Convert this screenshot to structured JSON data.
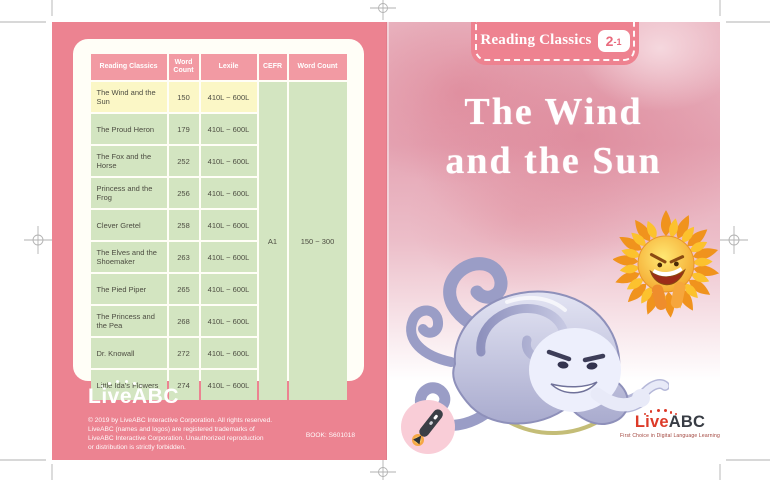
{
  "back_cover": {
    "table": {
      "headers": [
        "Reading Classics",
        "Word Count",
        "Lexile",
        "CEFR",
        "Word Count"
      ],
      "rows": [
        {
          "title": "The Wind and the Sun",
          "word_count": "150",
          "lexile": "410L ~ 600L",
          "highlight": true
        },
        {
          "title": "The Proud Heron",
          "word_count": "179",
          "lexile": "410L ~ 600L",
          "highlight": false
        },
        {
          "title": "The Fox and the Horse",
          "word_count": "252",
          "lexile": "410L ~ 600L",
          "highlight": false
        },
        {
          "title": "Princess and the Frog",
          "word_count": "256",
          "lexile": "410L ~ 600L",
          "highlight": false
        },
        {
          "title": "Clever Gretel",
          "word_count": "258",
          "lexile": "410L ~ 600L",
          "highlight": false
        },
        {
          "title": "The Elves and the Shoemaker",
          "word_count": "263",
          "lexile": "410L ~ 600L",
          "highlight": false
        },
        {
          "title": "The Pied Piper",
          "word_count": "265",
          "lexile": "410L ~ 600L",
          "highlight": false
        },
        {
          "title": "The Princess and the Pea",
          "word_count": "268",
          "lexile": "410L ~ 600L",
          "highlight": false
        },
        {
          "title": "Dr. Knowall",
          "word_count": "272",
          "lexile": "410L ~ 600L",
          "highlight": false
        },
        {
          "title": "Little Ida's Flowers",
          "word_count": "274",
          "lexile": "410L ~ 600L",
          "highlight": false
        }
      ],
      "cefr_merged": "A1",
      "word_count_range_merged": "150 ~ 300"
    },
    "logo_text": "LiveABC",
    "copyright_lines": [
      "© 2019 by LiveABC Interactive Corporation. All rights reserved.",
      "LiveABC (names and logos) are registered trademarks of",
      "LiveABC Interactive Corporation. Unauthorized reproduction",
      "or distribution is strictly forbidden."
    ],
    "book_code": "BOOK: S601018"
  },
  "front_cover": {
    "badge_label": "Reading Classics",
    "level_main": "2",
    "level_sub": "-1",
    "title_line1": "The Wind",
    "title_line2": "and the Sun",
    "logo_live": "Live",
    "logo_abc": "ABC",
    "logo_tagline": "First Choice in Digital Language Learning"
  },
  "colors": {
    "back_cover_pink": "#ec8391",
    "table_header_pink": "#f29aa3",
    "highlight_yellow": "#fbf7c6",
    "row_green": "#d3e5c1",
    "badge_pink": "#ee8290",
    "level_text_pink": "#e96a7d",
    "logo_red": "#dd3a28",
    "logo_dark": "#383c44",
    "title_white": "#ffffff"
  }
}
